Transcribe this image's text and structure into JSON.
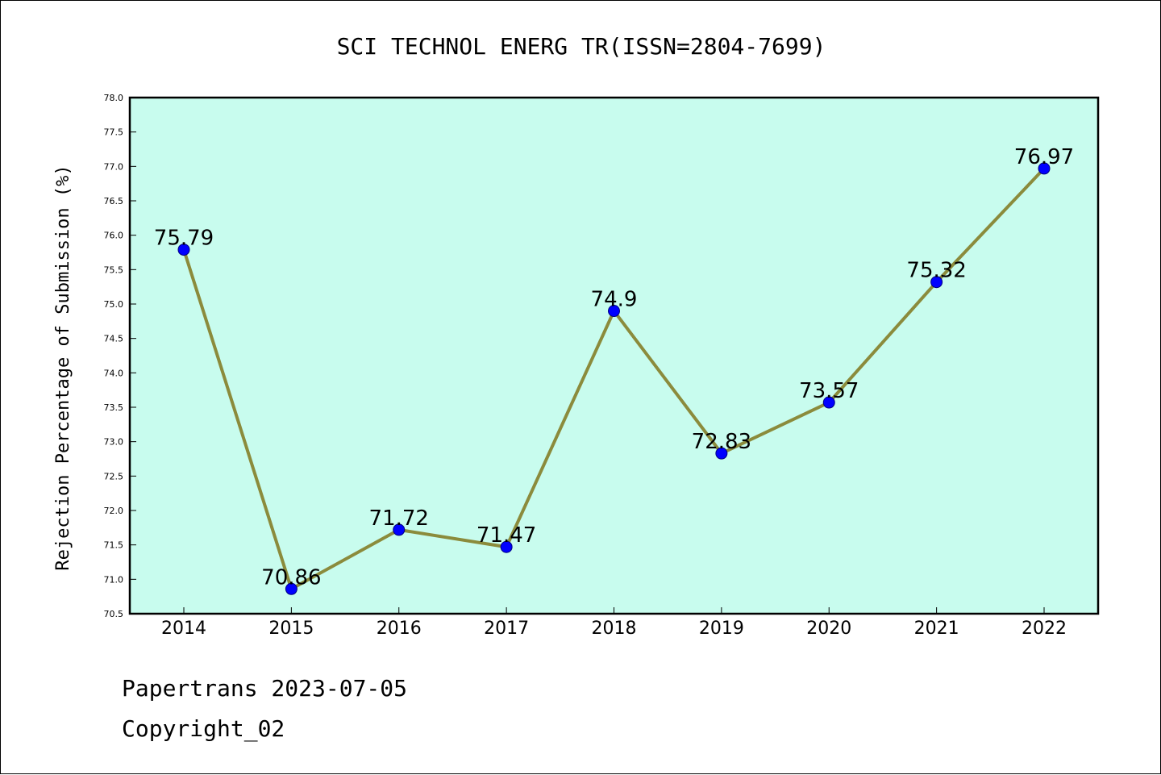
{
  "chart_data": {
    "type": "line",
    "title": "SCI TECHNOL ENERG TR(ISSN=2804-7699)",
    "xlabel": "",
    "ylabel": "Rejection Percentage of Submission (%)",
    "categories": [
      "2014",
      "2015",
      "2016",
      "2017",
      "2018",
      "2019",
      "2020",
      "2021",
      "2022"
    ],
    "series": [
      {
        "values": [
          75.79,
          70.86,
          71.72,
          71.47,
          74.9,
          72.83,
          73.57,
          75.32,
          76.97
        ],
        "labels": [
          "75.79",
          "70.86",
          "71.72",
          "71.47",
          "74.9",
          "72.83",
          "73.57",
          "75.32",
          "76.97"
        ]
      }
    ],
    "ylim": [
      70.5,
      78.0
    ],
    "yticks": [
      "70.5",
      "71.0",
      "71.5",
      "72.0",
      "72.5",
      "73.0",
      "73.5",
      "74.0",
      "74.5",
      "75.0",
      "75.5",
      "76.0",
      "76.5",
      "77.0",
      "77.5",
      "78.0"
    ],
    "grid": false,
    "legend": "none"
  },
  "colors": {
    "plot_background": "#c8fcee",
    "line": "#8b8b3c",
    "marker": "#0000ff",
    "marker_edge": "#000080",
    "axis": "#000000"
  },
  "footer": {
    "line1": "Papertrans 2023-07-05",
    "line2": "Copyright_02"
  }
}
